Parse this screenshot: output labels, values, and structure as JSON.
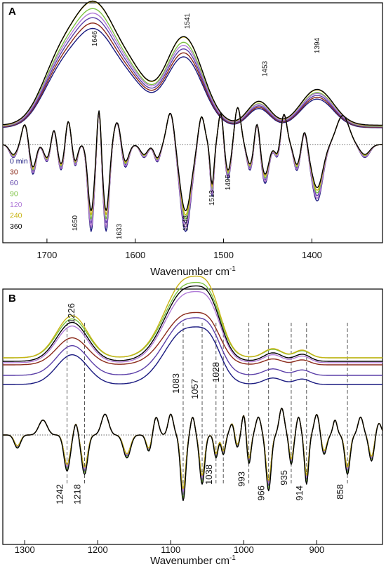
{
  "chart_data": [
    {
      "panel": "A",
      "type": "line",
      "xlabel": "Wavenumber cm",
      "xlabel_sup": "-1",
      "xlim": [
        1750,
        1320
      ],
      "xticks": [
        1700,
        1600,
        1500,
        1400
      ],
      "legend": {
        "placement": "left",
        "items": [
          {
            "label": "0 min",
            "color": "#1a1a80"
          },
          {
            "label": "30",
            "color": "#8b2a1a"
          },
          {
            "label": "60",
            "color": "#5b3fa8"
          },
          {
            "label": "90",
            "color": "#7cc242"
          },
          {
            "label": "120",
            "color": "#b07ad8"
          },
          {
            "label": "240",
            "color": "#c9b414"
          },
          {
            "label": "360",
            "color": "#000000"
          }
        ]
      },
      "annotations": [
        "1646",
        "1541",
        "1453",
        "1394",
        "1650",
        "1633",
        "1543",
        "1513",
        "1495"
      ],
      "series": [
        {
          "name": "0 min",
          "color": "#1a1a80"
        },
        {
          "name": "30",
          "color": "#8b2a1a"
        },
        {
          "name": "60",
          "color": "#5b3fa8"
        },
        {
          "name": "90",
          "color": "#7cc242"
        },
        {
          "name": "120",
          "color": "#b07ad8"
        },
        {
          "name": "240",
          "color": "#c9b414"
        },
        {
          "name": "360",
          "color": "#000000"
        }
      ]
    },
    {
      "panel": "B",
      "type": "line",
      "xlabel": "Wavenumber cm",
      "xlabel_sup": "-1",
      "xlim": [
        1330,
        810
      ],
      "xticks": [
        1300,
        1200,
        1100,
        1000,
        900
      ],
      "annotations": [
        "1226",
        "1083",
        "1057",
        "1028",
        "1242",
        "1218",
        "1038",
        "993",
        "966",
        "935",
        "914",
        "858"
      ],
      "guide_lines": [
        1242,
        1218,
        1083,
        1057,
        1038,
        1028,
        993,
        966,
        935,
        914,
        858
      ],
      "series": [
        {
          "name": "0 min",
          "color": "#1a1a80"
        },
        {
          "name": "30",
          "color": "#8b2a1a"
        },
        {
          "name": "60",
          "color": "#5b3fa8"
        },
        {
          "name": "90",
          "color": "#7cc242"
        },
        {
          "name": "120",
          "color": "#b07ad8"
        },
        {
          "name": "240",
          "color": "#c9b414"
        },
        {
          "name": "360",
          "color": "#000000"
        }
      ]
    }
  ],
  "panels": {
    "a_label": "A",
    "b_label": "B"
  }
}
